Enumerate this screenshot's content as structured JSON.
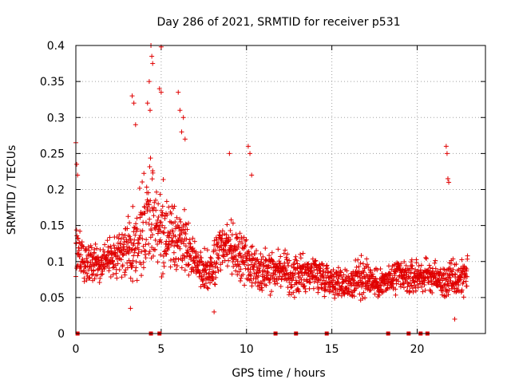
{
  "chart_data": {
    "type": "scatter",
    "title": "Day 286 of 2021, SRMTID for receiver p531",
    "xlabel": "GPS time / hours",
    "ylabel": "SRMTID / TECUs",
    "xlim": [
      0,
      24
    ],
    "ylim": [
      0,
      0.4
    ],
    "xticks": [
      0,
      5,
      10,
      15,
      20
    ],
    "xtick_labels": [
      "0",
      "5",
      "10",
      "15",
      "20"
    ],
    "yticks": [
      0,
      0.05,
      0.1,
      0.15,
      0.2,
      0.25,
      0.3,
      0.35,
      0.4
    ],
    "ytick_labels": [
      "0",
      "0.05",
      "0.1",
      "0.15",
      "0.2",
      "0.25",
      "0.3",
      "0.35",
      "0.4"
    ],
    "grid": true,
    "marker": "plus",
    "color": "#e00000",
    "data_gap_markers_x": [
      0.1,
      4.4,
      4.9,
      11.7,
      12.9,
      14.7,
      18.3,
      19.5,
      20.2,
      20.6
    ],
    "profile": {
      "hours": [
        0,
        0.5,
        1,
        1.5,
        2,
        2.5,
        3,
        3.5,
        4,
        4.5,
        5,
        5.5,
        6,
        6.5,
        7,
        7.5,
        8,
        8.5,
        9,
        9.5,
        10,
        10.5,
        11,
        11.5,
        12,
        12.5,
        13,
        13.5,
        14,
        14.5,
        15,
        15.5,
        16,
        16.5,
        17,
        17.5,
        18,
        18.5,
        19,
        19.5,
        20,
        20.5,
        21,
        21.5,
        22,
        22.5,
        23
      ],
      "median": [
        0.12,
        0.1,
        0.1,
        0.1,
        0.11,
        0.11,
        0.12,
        0.13,
        0.15,
        0.16,
        0.15,
        0.13,
        0.13,
        0.12,
        0.1,
        0.09,
        0.09,
        0.12,
        0.12,
        0.11,
        0.1,
        0.09,
        0.09,
        0.09,
        0.09,
        0.08,
        0.08,
        0.085,
        0.085,
        0.08,
        0.075,
        0.07,
        0.07,
        0.075,
        0.08,
        0.07,
        0.07,
        0.075,
        0.08,
        0.075,
        0.08,
        0.08,
        0.08,
        0.07,
        0.075,
        0.075,
        0.09
      ],
      "spread": [
        0.06,
        0.04,
        0.04,
        0.04,
        0.04,
        0.05,
        0.06,
        0.08,
        0.09,
        0.1,
        0.09,
        0.07,
        0.07,
        0.05,
        0.04,
        0.04,
        0.05,
        0.05,
        0.05,
        0.05,
        0.05,
        0.04,
        0.04,
        0.04,
        0.035,
        0.035,
        0.035,
        0.035,
        0.035,
        0.035,
        0.03,
        0.03,
        0.035,
        0.04,
        0.04,
        0.03,
        0.03,
        0.035,
        0.035,
        0.035,
        0.035,
        0.03,
        0.03,
        0.03,
        0.04,
        0.04,
        0.04
      ]
    },
    "notable_points": [
      {
        "x": 0.0,
        "y": 0.265
      },
      {
        "x": 0.05,
        "y": 0.235
      },
      {
        "x": 0.1,
        "y": 0.22
      },
      {
        "x": 3.3,
        "y": 0.33
      },
      {
        "x": 3.4,
        "y": 0.32
      },
      {
        "x": 3.5,
        "y": 0.29
      },
      {
        "x": 4.2,
        "y": 0.32
      },
      {
        "x": 4.3,
        "y": 0.35
      },
      {
        "x": 4.4,
        "y": 0.4
      },
      {
        "x": 4.45,
        "y": 0.385
      },
      {
        "x": 4.5,
        "y": 0.375
      },
      {
        "x": 4.35,
        "y": 0.31
      },
      {
        "x": 4.9,
        "y": 0.34
      },
      {
        "x": 5.0,
        "y": 0.398
      },
      {
        "x": 5.0,
        "y": 0.335
      },
      {
        "x": 6.0,
        "y": 0.335
      },
      {
        "x": 6.1,
        "y": 0.31
      },
      {
        "x": 6.3,
        "y": 0.3
      },
      {
        "x": 6.2,
        "y": 0.28
      },
      {
        "x": 6.4,
        "y": 0.27
      },
      {
        "x": 9.0,
        "y": 0.25
      },
      {
        "x": 10.1,
        "y": 0.26
      },
      {
        "x": 10.2,
        "y": 0.25
      },
      {
        "x": 10.3,
        "y": 0.22
      },
      {
        "x": 21.7,
        "y": 0.26
      },
      {
        "x": 21.75,
        "y": 0.25
      },
      {
        "x": 21.8,
        "y": 0.215
      },
      {
        "x": 21.85,
        "y": 0.21
      },
      {
        "x": 22.2,
        "y": 0.02
      },
      {
        "x": 8.1,
        "y": 0.03
      },
      {
        "x": 3.2,
        "y": 0.035
      }
    ]
  }
}
